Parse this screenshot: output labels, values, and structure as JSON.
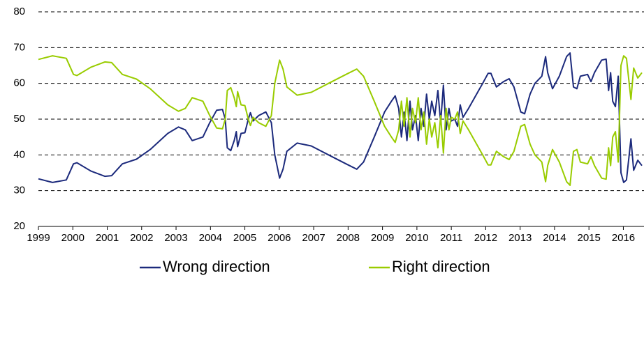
{
  "chart_data": {
    "type": "line",
    "x": [
      1999.0,
      1999.41,
      1999.81,
      2000.02,
      2000.12,
      2000.52,
      2000.93,
      2001.13,
      2001.44,
      2001.85,
      2002.25,
      2002.76,
      2003.07,
      2003.27,
      2003.47,
      2003.78,
      2003.98,
      2004.18,
      2004.35,
      2004.43,
      2004.49,
      2004.59,
      2004.69,
      2004.75,
      2004.79,
      2004.89,
      2005.0,
      2005.1,
      2005.16,
      2005.24,
      2005.4,
      2005.61,
      2005.77,
      2005.87,
      2006.01,
      2006.11,
      2006.22,
      2006.52,
      2006.93,
      2007.43,
      2007.94,
      2008.25,
      2008.45,
      2008.76,
      2009.06,
      2009.26,
      2009.37,
      2009.47,
      2009.55,
      2009.63,
      2009.71,
      2009.8,
      2009.87,
      2009.96,
      2010.04,
      2010.12,
      2010.2,
      2010.28,
      2010.36,
      2010.43,
      2010.52,
      2010.61,
      2010.69,
      2010.77,
      2010.85,
      2010.93,
      2011.0,
      2011.1,
      2011.18,
      2011.26,
      2011.34,
      2011.5,
      2011.91,
      2012.07,
      2012.15,
      2012.31,
      2012.52,
      2012.68,
      2012.82,
      2013.02,
      2013.13,
      2013.29,
      2013.43,
      2013.63,
      2013.74,
      2013.8,
      2013.94,
      2014.14,
      2014.35,
      2014.45,
      2014.55,
      2014.65,
      2014.75,
      2014.96,
      2015.06,
      2015.16,
      2015.37,
      2015.5,
      2015.57,
      2015.63,
      2015.69,
      2015.77,
      2015.85,
      2015.93,
      2016.01,
      2016.09,
      2016.22,
      2016.3,
      2016.42,
      2016.54
    ],
    "series": [
      {
        "name": "Wrong direction",
        "color": "#1c2a7c",
        "values": [
          33.3,
          32.3,
          33,
          37.5,
          37.8,
          35.5,
          34,
          34.2,
          37.5,
          38.8,
          41.5,
          46,
          47.8,
          47,
          44,
          45,
          49,
          52.5,
          52.7,
          50,
          42,
          41.2,
          44,
          46.5,
          42.3,
          46,
          46.2,
          50,
          51.8,
          49.5,
          51,
          52,
          49,
          40,
          33.5,
          36,
          41,
          43.3,
          42.5,
          40,
          37.5,
          36,
          38,
          45,
          52,
          55,
          56.5,
          53,
          45,
          52,
          44,
          55,
          47,
          51,
          44,
          53,
          48,
          57,
          50,
          55,
          51,
          58,
          49,
          59.5,
          47,
          53,
          49.5,
          50,
          48,
          54,
          50.5,
          53,
          60,
          62.8,
          62.8,
          59,
          60.5,
          61.3,
          59,
          52,
          51.5,
          57,
          60,
          62,
          67.5,
          63,
          58.5,
          62,
          67.5,
          68.5,
          59,
          58.5,
          62,
          62.5,
          60.5,
          63,
          66.5,
          66.8,
          58,
          63,
          55,
          53.5,
          62,
          35,
          32.3,
          33,
          44.5,
          35.7,
          38.5,
          37
        ]
      },
      {
        "name": "Right direction",
        "color": "#99cc00",
        "values": [
          66.7,
          67.7,
          67,
          62.5,
          62.2,
          64.5,
          66,
          65.8,
          62.5,
          61.2,
          58.5,
          54,
          52.2,
          53,
          56,
          55,
          51,
          47.5,
          47.3,
          50,
          58,
          58.8,
          56,
          53.5,
          57.7,
          54,
          53.8,
          50,
          48.2,
          50.5,
          49,
          48,
          51,
          60,
          66.5,
          64,
          59,
          56.7,
          57.5,
          60,
          62.5,
          64,
          62,
          55,
          48,
          45,
          43.5,
          47,
          55,
          48,
          56,
          45,
          53,
          49,
          56,
          47,
          52,
          43,
          50,
          45,
          49,
          42,
          51,
          40.5,
          53,
          47,
          50.5,
          50,
          52,
          46,
          49.5,
          47,
          40,
          37.2,
          37.2,
          41,
          39.5,
          38.7,
          41,
          48,
          48.5,
          43,
          40,
          38,
          32.5,
          37,
          41.5,
          38,
          32.5,
          31.5,
          41,
          41.5,
          38,
          37.5,
          39.5,
          37,
          33.5,
          33.2,
          42,
          37,
          45,
          46.5,
          38,
          65,
          67.7,
          67,
          55.5,
          64.3,
          61.5,
          63
        ]
      }
    ],
    "xlim": [
      1999,
      2016.6
    ],
    "xticks": [
      1999,
      2000,
      2001,
      2002,
      2003,
      2004,
      2005,
      2006,
      2007,
      2008,
      2009,
      2010,
      2011,
      2012,
      2013,
      2014,
      2015,
      2016
    ],
    "ylim": [
      20,
      80
    ],
    "yticks": [
      20,
      30,
      40,
      50,
      60,
      70,
      80
    ],
    "grid": true,
    "legend": "bottom"
  }
}
